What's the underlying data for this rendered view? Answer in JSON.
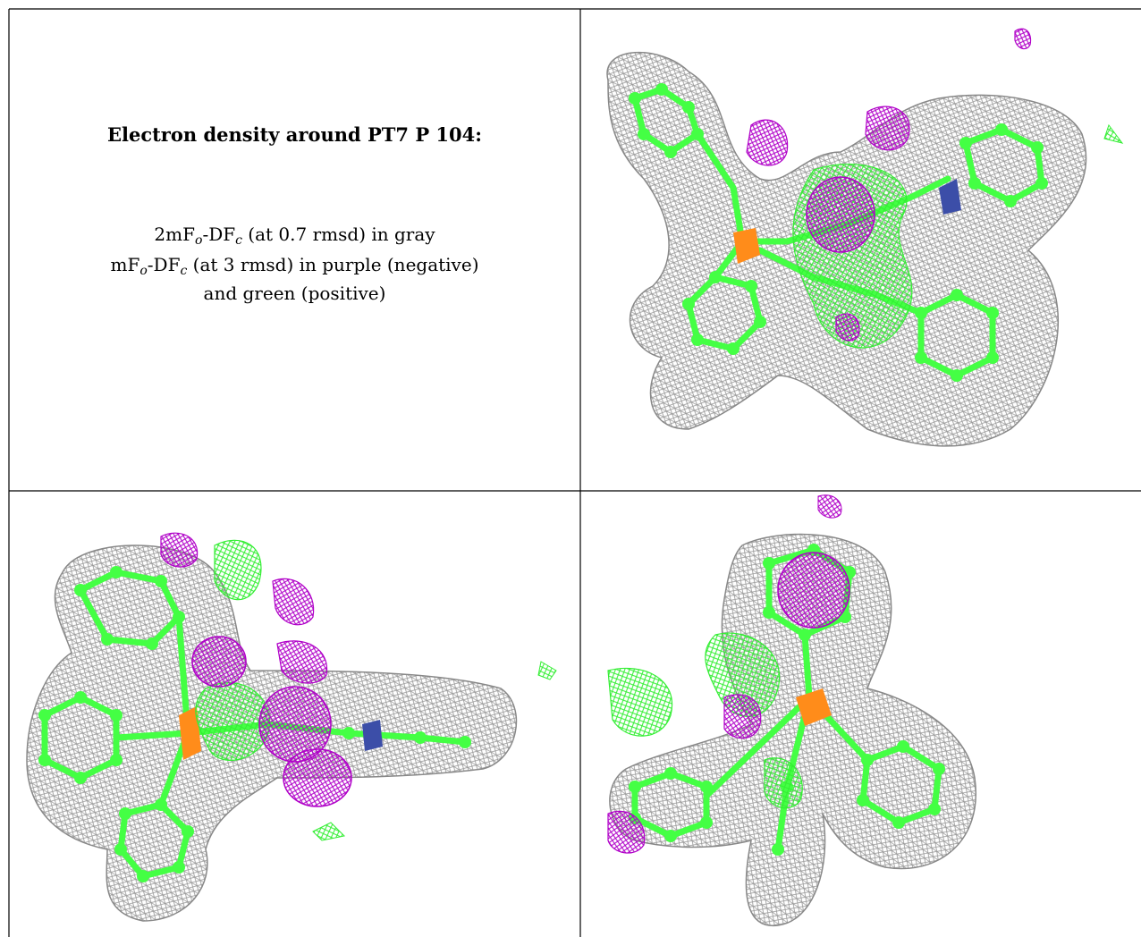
{
  "caption": {
    "title": "Electron density around PT7 P 104:",
    "map1_prefix": "2mF",
    "map1_sub1": "o",
    "map1_mid": "-DF",
    "map1_sub2": "c",
    "map1_suffix": " (at 0.7 rmsd) in gray",
    "map2_prefix": "mF",
    "map2_sub1": "o",
    "map2_mid": "-DF",
    "map2_sub2": "c",
    "map2_suffix": " (at 3 rmsd) in purple (negative)",
    "line3": "and green (positive)"
  },
  "colors": {
    "mesh_2fofc": "#9a9a9a",
    "mesh_negative": "#b000c8",
    "mesh_positive": "#33ee33",
    "carbon": "#44ff44",
    "nitrogen": "#3c4ea8",
    "phosphorus": "#ff8c1a",
    "border": "#000000"
  },
  "panels": [
    {
      "name": "view-top-right",
      "icon": "ligand-density-render"
    },
    {
      "name": "view-bottom-left",
      "icon": "ligand-density-render"
    },
    {
      "name": "view-bottom-right",
      "icon": "ligand-density-render"
    }
  ]
}
